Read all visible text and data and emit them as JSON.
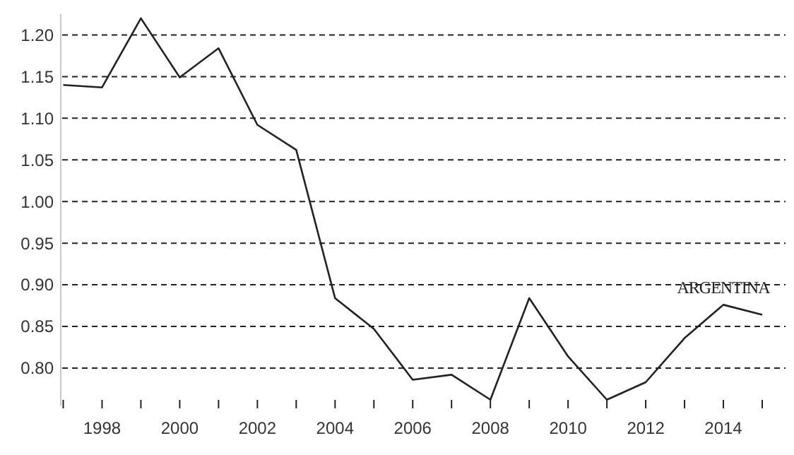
{
  "chart_data": {
    "type": "line",
    "x": [
      1997,
      1998,
      1999,
      2000,
      2001,
      2002,
      2003,
      2004,
      2005,
      2006,
      2007,
      2008,
      2009,
      2010,
      2011,
      2012,
      2013,
      2014,
      2015
    ],
    "series": [
      {
        "name": "ARGENTINA",
        "color": "#222222",
        "values": [
          1.14,
          1.137,
          1.22,
          1.149,
          1.184,
          1.092,
          1.062,
          0.884,
          0.847,
          0.786,
          0.792,
          0.762,
          0.884,
          0.814,
          0.762,
          0.783,
          0.836,
          0.876,
          0.864
        ]
      }
    ],
    "xlim": [
      1996.9,
      2015.6
    ],
    "ylim": [
      0.755,
      1.225
    ],
    "xticks": [
      {
        "value": 1997,
        "label": null
      },
      1998,
      {
        "value": 1999,
        "label": null
      },
      2000,
      {
        "value": 2001,
        "label": null
      },
      2002,
      {
        "value": 2003,
        "label": null
      },
      2004,
      {
        "value": 2005,
        "label": null
      },
      2006,
      {
        "value": 2007,
        "label": null
      },
      2008,
      {
        "value": 2009,
        "label": null
      },
      2010,
      {
        "value": 2011,
        "label": null
      },
      2012,
      {
        "value": 2013,
        "label": null
      },
      2014,
      {
        "value": 2015,
        "label": null
      }
    ],
    "yticks": [
      {
        "value": 0.8,
        "label": "0.80"
      },
      {
        "value": 0.85,
        "label": "0.85"
      },
      {
        "value": 0.9,
        "label": "0.90"
      },
      {
        "value": 0.95,
        "label": "0.95"
      },
      {
        "value": 1.0,
        "label": "1.00"
      },
      {
        "value": 1.05,
        "label": "1.05"
      },
      {
        "value": 1.1,
        "label": "1.10"
      },
      {
        "value": 1.15,
        "label": "1.15"
      },
      {
        "value": 1.2,
        "label": "1.20"
      }
    ],
    "grid": "y",
    "marker": "none",
    "line_style": "solid"
  }
}
